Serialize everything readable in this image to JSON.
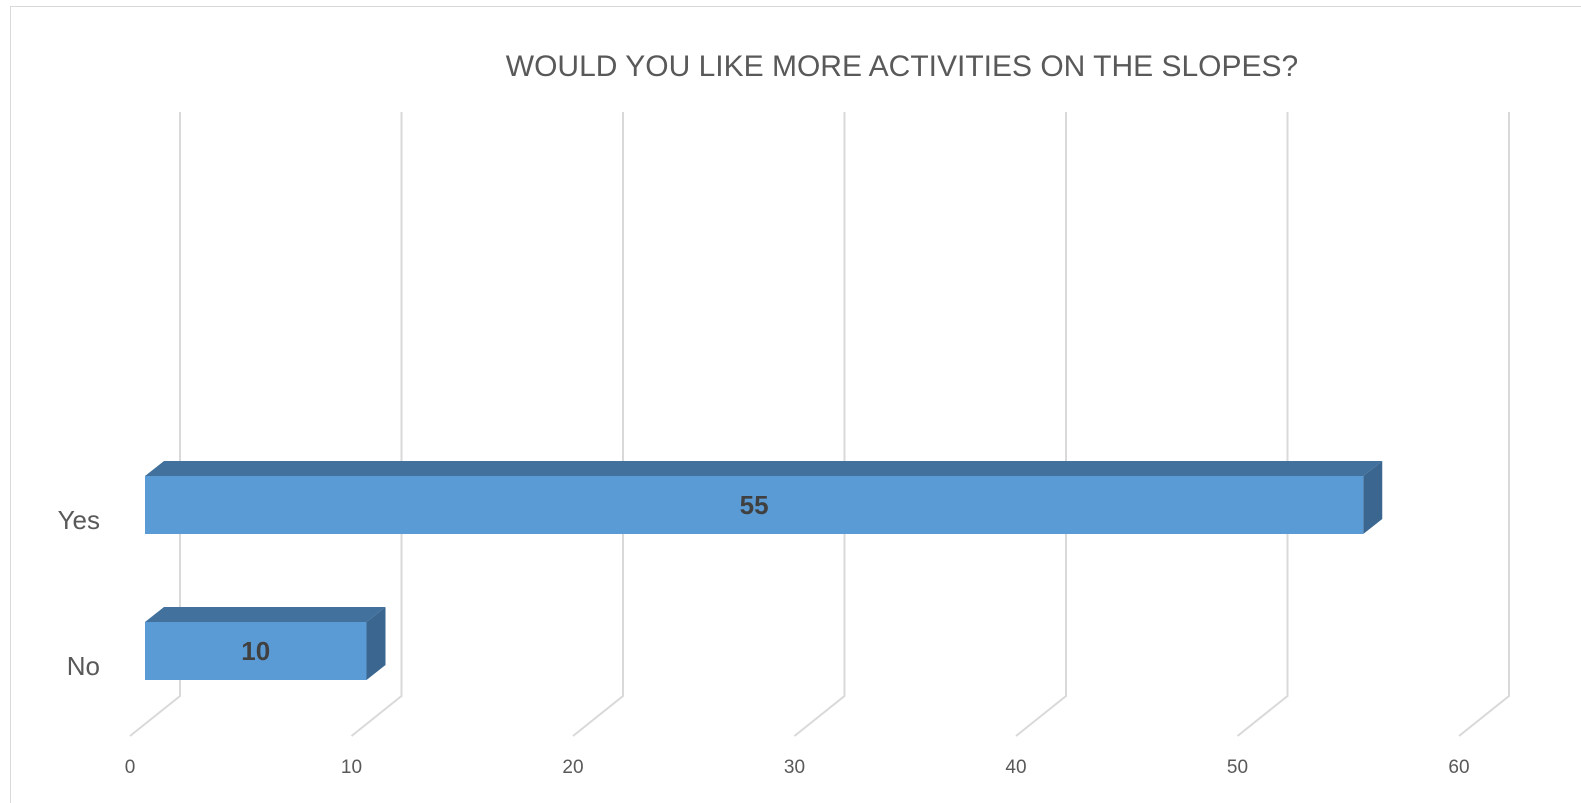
{
  "chart_data": {
    "type": "bar",
    "orientation": "horizontal",
    "style": "3d",
    "title": "WOULD YOU LIKE MORE ACTIVITIES ON THE SLOPES?",
    "categories": [
      "No",
      "Yes"
    ],
    "values": [
      10,
      55
    ],
    "xlim": [
      0,
      60
    ],
    "x_ticks": [
      "0",
      "10",
      "20",
      "30",
      "40",
      "50",
      "60"
    ],
    "grid": true,
    "legend": "none",
    "data_labels": [
      "10",
      "55"
    ],
    "colors": {
      "bar_front": "#5b9bd5",
      "bar_top": "#41719c",
      "bar_side": "#3a6690",
      "grid": "#d9d9d9",
      "text": "#595959"
    }
  }
}
